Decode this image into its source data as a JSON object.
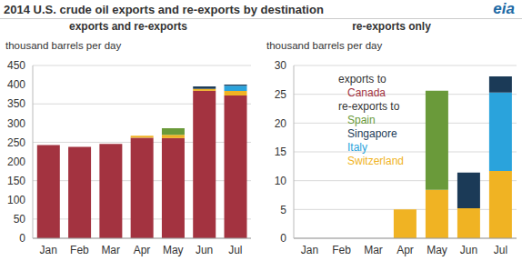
{
  "title": "2014 U.S. crude oil exports and re-exports by destination",
  "logo": "eia",
  "chart_data": [
    {
      "type": "bar",
      "title": "exports and re-exports",
      "y_label": "thousand barrels per day",
      "categories": [
        "Jan",
        "Feb",
        "Mar",
        "Apr",
        "May",
        "Jun",
        "Jul"
      ],
      "series": [
        {
          "name": "Canada",
          "color": "#a33340",
          "values": [
            243,
            238,
            246,
            262,
            261,
            384,
            372
          ]
        },
        {
          "name": "Spain",
          "color": "#6a9a3a",
          "values": [
            null,
            null,
            null,
            null,
            17.2,
            null,
            null
          ]
        },
        {
          "name": "Singapore",
          "color": "#1b3a57",
          "values": [
            null,
            null,
            null,
            null,
            null,
            6.2,
            2.8
          ]
        },
        {
          "name": "Italy",
          "color": "#2aa3dc",
          "values": [
            null,
            null,
            null,
            null,
            null,
            null,
            13.6
          ]
        },
        {
          "name": "Switzerland",
          "color": "#f0b323",
          "values": [
            null,
            null,
            null,
            5,
            8.4,
            5.2,
            11.7
          ]
        }
      ],
      "ylim": [
        0,
        450
      ],
      "yticks": [
        0,
        50,
        100,
        150,
        200,
        250,
        300,
        350,
        400,
        450
      ],
      "grid": true,
      "stacked": true,
      "annotations": [
        "exports to",
        "re-exports to"
      ]
    },
    {
      "type": "bar",
      "title": "re-exports only",
      "y_label": "thousand barrels per day",
      "categories": [
        "Jan",
        "Feb",
        "Mar",
        "Apr",
        "May",
        "Jun",
        "Jul"
      ],
      "series": [
        {
          "name": "Spain",
          "color": "#6a9a3a",
          "values": [
            null,
            null,
            null,
            null,
            17.2,
            null,
            null
          ]
        },
        {
          "name": "Singapore",
          "color": "#1b3a57",
          "values": [
            null,
            null,
            null,
            null,
            null,
            6.2,
            2.8
          ]
        },
        {
          "name": "Italy",
          "color": "#2aa3dc",
          "values": [
            null,
            null,
            null,
            null,
            null,
            null,
            13.6
          ]
        },
        {
          "name": "Switzerland",
          "color": "#f0b323",
          "values": [
            null,
            null,
            null,
            5,
            8.4,
            5.2,
            11.7
          ]
        }
      ],
      "ylim": [
        0,
        30
      ],
      "yticks": [
        0,
        5,
        10,
        15,
        20,
        25,
        30
      ],
      "grid": true,
      "stacked": true
    }
  ]
}
